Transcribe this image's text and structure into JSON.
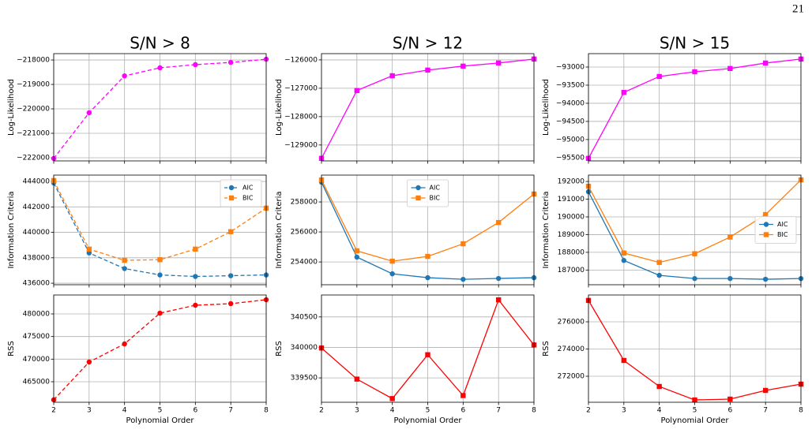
{
  "page_number": "21",
  "chart_data": [
    {
      "type": "line",
      "title": "S/N > 8",
      "ylabel": "Log-Likelihood",
      "x": [
        2,
        3,
        4,
        5,
        6,
        7,
        8
      ],
      "xlim": [
        2,
        8
      ],
      "xticks": [
        2,
        3,
        4,
        5,
        6,
        7,
        8
      ],
      "xtick_labels": false,
      "ylim": [
        -222130,
        -217740
      ],
      "yticks": [
        -222000,
        -221000,
        -220000,
        -219000,
        -218000
      ],
      "grid": true,
      "series": [
        {
          "color": "#ff00ff",
          "linestyle": "dashed",
          "marker": "circle",
          "values": [
            -222030,
            -220160,
            -218650,
            -218320,
            -218190,
            -218100,
            -217970
          ]
        }
      ]
    },
    {
      "type": "line",
      "title": "S/N > 12",
      "ylabel": "Log-Likelihood",
      "x": [
        2,
        3,
        4,
        5,
        6,
        7,
        8
      ],
      "xlim": [
        2,
        8
      ],
      "xticks": [
        2,
        3,
        4,
        5,
        6,
        7,
        8
      ],
      "xtick_labels": false,
      "ylim": [
        -129560,
        -125780
      ],
      "yticks": [
        -129000,
        -128000,
        -127000,
        -126000
      ],
      "grid": true,
      "series": [
        {
          "color": "#ff00ff",
          "linestyle": "solid",
          "marker": "square",
          "values": [
            -129470,
            -127080,
            -126560,
            -126360,
            -126220,
            -126110,
            -125970
          ]
        }
      ]
    },
    {
      "type": "line",
      "title": "S/N > 15",
      "ylabel": "Log-Likelihood",
      "x": [
        2,
        3,
        4,
        5,
        6,
        7,
        8
      ],
      "xlim": [
        2,
        8
      ],
      "xticks": [
        2,
        3,
        4,
        5,
        6,
        7,
        8
      ],
      "xtick_labels": false,
      "ylim": [
        -95590,
        -92630
      ],
      "yticks": [
        -95500,
        -95000,
        -94500,
        -94000,
        -93500,
        -93000
      ],
      "grid": true,
      "series": [
        {
          "color": "#ff00ff",
          "linestyle": "solid",
          "marker": "square",
          "values": [
            -95520,
            -93700,
            -93260,
            -93130,
            -93040,
            -92890,
            -92780
          ]
        }
      ]
    },
    {
      "type": "line",
      "ylabel": "Information Criteria",
      "x": [
        2,
        3,
        4,
        5,
        6,
        7,
        8
      ],
      "xlim": [
        2,
        8
      ],
      "xticks": [
        2,
        3,
        4,
        5,
        6,
        7,
        8
      ],
      "xtick_labels": false,
      "ylim": [
        435880,
        444500
      ],
      "yticks": [
        436000,
        438000,
        440000,
        442000,
        444000
      ],
      "grid": true,
      "legend": "upper right",
      "series": [
        {
          "name": "AIC",
          "color": "#1f77b4",
          "linestyle": "dashed",
          "marker": "circle",
          "values": [
            443880,
            438380,
            437150,
            436650,
            436530,
            436590,
            436650
          ]
        },
        {
          "name": "BIC",
          "color": "#ff7f0e",
          "linestyle": "dashed",
          "marker": "square",
          "values": [
            444070,
            438680,
            437800,
            437850,
            438680,
            440050,
            441900
          ]
        }
      ]
    },
    {
      "type": "line",
      "ylabel": "Information Criteria",
      "x": [
        2,
        3,
        4,
        5,
        6,
        7,
        8
      ],
      "xlim": [
        2,
        8
      ],
      "xticks": [
        2,
        3,
        4,
        5,
        6,
        7,
        8
      ],
      "xtick_labels": false,
      "ylim": [
        252480,
        259790
      ],
      "yticks": [
        254000,
        256000,
        258000
      ],
      "grid": true,
      "legend": "upper center",
      "series": [
        {
          "name": "AIC",
          "color": "#1f77b4",
          "linestyle": "solid",
          "marker": "circle",
          "values": [
            259320,
            254320,
            253210,
            252950,
            252840,
            252900,
            252950
          ]
        },
        {
          "name": "BIC",
          "color": "#ff7f0e",
          "linestyle": "solid",
          "marker": "square",
          "values": [
            259470,
            254740,
            254050,
            254370,
            255210,
            256630,
            258530
          ]
        }
      ]
    },
    {
      "type": "line",
      "ylabel": "Information Criteria",
      "x": [
        2,
        3,
        4,
        5,
        6,
        7,
        8
      ],
      "xlim": [
        2,
        8
      ],
      "xticks": [
        2,
        3,
        4,
        5,
        6,
        7,
        8
      ],
      "xtick_labels": false,
      "ylim": [
        186170,
        192360
      ],
      "yticks": [
        187000,
        188000,
        189000,
        190000,
        191000,
        192000
      ],
      "grid": true,
      "legend": "center right",
      "series": [
        {
          "name": "AIC",
          "color": "#1f77b4",
          "linestyle": "solid",
          "marker": "circle",
          "values": [
            191420,
            187540,
            186700,
            186520,
            186520,
            186480,
            186520
          ]
        },
        {
          "name": "BIC",
          "color": "#ff7f0e",
          "linestyle": "solid",
          "marker": "square",
          "values": [
            191730,
            187960,
            187430,
            187920,
            188860,
            190130,
            192090
          ]
        }
      ]
    },
    {
      "type": "line",
      "ylabel": "RSS",
      "xlabel": "Polynomial Order",
      "x": [
        2,
        3,
        4,
        5,
        6,
        7,
        8
      ],
      "xlim": [
        2,
        8
      ],
      "xticks": [
        2,
        3,
        4,
        5,
        6,
        7,
        8
      ],
      "xtick_labels": true,
      "ylim": [
        460460,
        484190
      ],
      "yticks": [
        465000,
        470000,
        475000,
        480000
      ],
      "grid": true,
      "series": [
        {
          "color": "#ff0000",
          "linestyle": "dashed",
          "marker": "circle",
          "values": [
            461000,
            469360,
            473370,
            480170,
            481920,
            482270,
            483140
          ]
        }
      ]
    },
    {
      "type": "line",
      "ylabel": "RSS",
      "xlabel": "Polynomial Order",
      "x": [
        2,
        3,
        4,
        5,
        6,
        7,
        8
      ],
      "xlim": [
        2,
        8
      ],
      "xticks": [
        2,
        3,
        4,
        5,
        6,
        7,
        8
      ],
      "xtick_labels": true,
      "ylim": [
        339100,
        340860
      ],
      "yticks": [
        339500,
        340000,
        340500
      ],
      "grid": true,
      "series": [
        {
          "color": "#ff0000",
          "linestyle": "solid",
          "marker": "square",
          "values": [
            339990,
            339480,
            339160,
            339880,
            339210,
            340780,
            340040
          ]
        }
      ]
    },
    {
      "type": "line",
      "ylabel": "RSS",
      "xlabel": "Polynomial Order",
      "x": [
        2,
        3,
        4,
        5,
        6,
        7,
        8
      ],
      "xlim": [
        2,
        8
      ],
      "xticks": [
        2,
        3,
        4,
        5,
        6,
        7,
        8
      ],
      "xtick_labels": true,
      "ylim": [
        270090,
        277970
      ],
      "yticks": [
        272000,
        274000,
        276000
      ],
      "grid": true,
      "series": [
        {
          "color": "#ff0000",
          "linestyle": "solid",
          "marker": "square",
          "values": [
            277570,
            273160,
            271250,
            270260,
            270320,
            270960,
            271420
          ]
        }
      ]
    }
  ]
}
